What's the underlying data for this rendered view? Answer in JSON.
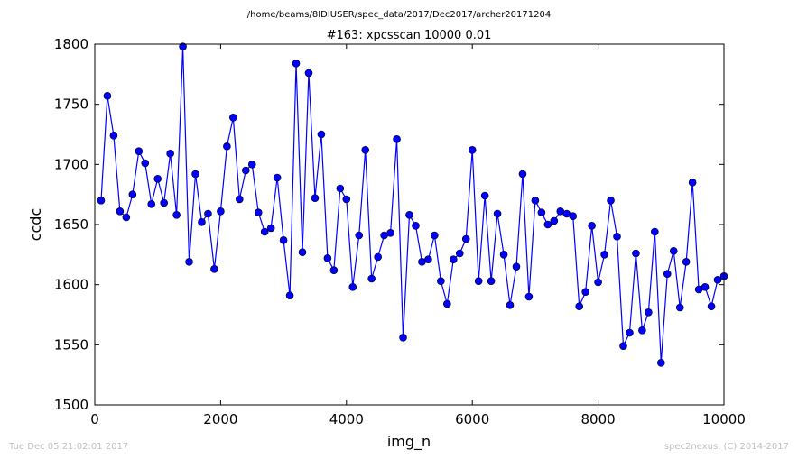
{
  "header": {
    "path": "/home/beams/8IDIUSER/spec_data/2017/Dec2017/archer20171204"
  },
  "footer": {
    "timestamp": "Tue Dec 05 21:02:01 2017",
    "credit": "spec2nexus, (C) 2014-2017"
  },
  "colors": {
    "series": "#0000ff",
    "axes": "#000000",
    "background": "#ffffff"
  },
  "chart_data": {
    "type": "line",
    "title": "#163: xpcsscan 10000 0.01",
    "xlabel": "img_n",
    "ylabel": "ccdc",
    "xlim": [
      0,
      10000
    ],
    "ylim": [
      1500,
      1800
    ],
    "xticks": [
      0,
      2000,
      4000,
      6000,
      8000,
      10000
    ],
    "yticks": [
      1500,
      1550,
      1600,
      1650,
      1700,
      1750,
      1800
    ],
    "grid": false,
    "marker": "circle",
    "series": [
      {
        "x": [
          100,
          200,
          300,
          400,
          500,
          600,
          700,
          800,
          900,
          1000,
          1100,
          1200,
          1300,
          1400,
          1500,
          1600,
          1700,
          1800,
          1900,
          2000,
          2100,
          2200,
          2300,
          2400,
          2500,
          2600,
          2700,
          2800,
          2900,
          3000,
          3100,
          3200,
          3300,
          3400,
          3500,
          3600,
          3700,
          3800,
          3900,
          4000,
          4100,
          4200,
          4300,
          4400,
          4500,
          4600,
          4700,
          4800,
          4900,
          5000,
          5100,
          5200,
          5300,
          5400,
          5500,
          5600,
          5700,
          5800,
          5900,
          6000,
          6100,
          6200,
          6300,
          6400,
          6500,
          6600,
          6700,
          6800,
          6900,
          7000,
          7100,
          7200,
          7300,
          7400,
          7500,
          7600,
          7700,
          7800,
          7900,
          8000,
          8100,
          8200,
          8300,
          8400,
          8500,
          8600,
          8700,
          8800,
          8900,
          9000,
          9100,
          9200,
          9300,
          9400,
          9500,
          9600,
          9700,
          9800,
          9900,
          10000
        ],
        "y": [
          1670,
          1757,
          1724,
          1661,
          1656,
          1675,
          1711,
          1701,
          1667,
          1688,
          1668,
          1709,
          1658,
          1798,
          1619,
          1692,
          1652,
          1659,
          1613,
          1661,
          1715,
          1739,
          1671,
          1695,
          1700,
          1660,
          1644,
          1647,
          1689,
          1637,
          1591,
          1784,
          1627,
          1776,
          1672,
          1725,
          1622,
          1612,
          1680,
          1671,
          1598,
          1641,
          1712,
          1605,
          1623,
          1641,
          1643,
          1721,
          1556,
          1658,
          1649,
          1619,
          1621,
          1641,
          1603,
          1584,
          1621,
          1626,
          1638,
          1712,
          1603,
          1674,
          1603,
          1659,
          1625,
          1583,
          1615,
          1692,
          1590,
          1670,
          1660,
          1650,
          1653,
          1661,
          1659,
          1657,
          1582,
          1594,
          1649,
          1602,
          1625,
          1670,
          1640,
          1549,
          1560,
          1626,
          1562,
          1577,
          1644,
          1535,
          1609,
          1628,
          1581,
          1619,
          1685,
          1596,
          1598,
          1582,
          1604,
          1607
        ]
      }
    ]
  }
}
